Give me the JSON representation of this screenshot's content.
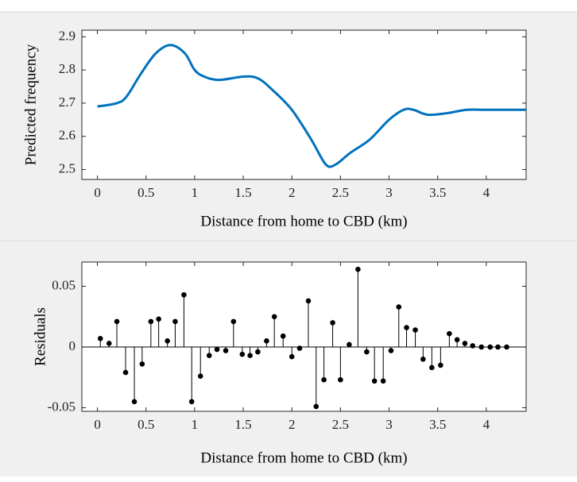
{
  "chart_data": [
    {
      "type": "line",
      "xlabel": "Distance from home to CBD (km)",
      "ylabel": "Predicted frequency",
      "color": "#0072bd",
      "x": [
        0,
        0.2,
        0.3,
        0.45,
        0.6,
        0.75,
        0.9,
        1.0,
        1.1,
        1.25,
        1.5,
        1.65,
        1.8,
        2.0,
        2.2,
        2.35,
        2.45,
        2.6,
        2.8,
        3.0,
        3.15,
        3.25,
        3.4,
        3.6,
        3.8,
        4.0,
        4.41
      ],
      "values": [
        2.69,
        2.7,
        2.72,
        2.79,
        2.85,
        2.875,
        2.85,
        2.8,
        2.78,
        2.77,
        2.78,
        2.775,
        2.74,
        2.68,
        2.59,
        2.515,
        2.515,
        2.55,
        2.59,
        2.65,
        2.68,
        2.68,
        2.665,
        2.67,
        2.68,
        2.68,
        2.68
      ],
      "xlim": [
        -0.16,
        4.41
      ],
      "ylim": [
        2.47,
        2.92
      ],
      "xticks": [
        0,
        0.5,
        1,
        1.5,
        2,
        2.5,
        3,
        3.5,
        4
      ],
      "yticks": [
        2.5,
        2.6,
        2.7,
        2.8,
        2.9
      ]
    },
    {
      "type": "stem",
      "xlabel": "Distance from home to CBD (km)",
      "ylabel": "Residuals",
      "color": "#000000",
      "x": [
        0.03,
        0.12,
        0.2,
        0.29,
        0.38,
        0.46,
        0.55,
        0.63,
        0.72,
        0.8,
        0.89,
        0.97,
        1.06,
        1.15,
        1.23,
        1.32,
        1.4,
        1.49,
        1.57,
        1.65,
        1.74,
        1.82,
        1.91,
        2.0,
        2.08,
        2.17,
        2.25,
        2.33,
        2.42,
        2.5,
        2.59,
        2.68,
        2.77,
        2.85,
        2.94,
        3.02,
        3.1,
        3.18,
        3.27,
        3.35,
        3.44,
        3.53,
        3.62,
        3.7,
        3.78,
        3.86,
        3.95,
        4.04,
        4.12,
        4.21
      ],
      "values": [
        0.007,
        0.003,
        0.021,
        -0.021,
        -0.045,
        -0.014,
        0.021,
        0.023,
        0.005,
        0.021,
        0.043,
        -0.045,
        -0.024,
        -0.007,
        -0.002,
        -0.003,
        0.021,
        -0.006,
        -0.007,
        -0.004,
        0.005,
        0.025,
        0.009,
        -0.008,
        -0.001,
        0.038,
        -0.049,
        -0.027,
        0.02,
        -0.027,
        0.002,
        0.064,
        -0.004,
        -0.028,
        -0.028,
        -0.003,
        0.033,
        0.016,
        0.014,
        -0.01,
        -0.017,
        -0.015,
        0.011,
        0.006,
        0.003,
        0.001,
        0,
        0,
        0,
        0
      ],
      "xlim": [
        -0.16,
        4.41
      ],
      "ylim": [
        -0.053,
        0.07
      ],
      "xticks": [
        0,
        0.5,
        1,
        1.5,
        2,
        2.5,
        3,
        3.5,
        4
      ],
      "yticks": [
        -0.05,
        0,
        0.05
      ]
    }
  ]
}
